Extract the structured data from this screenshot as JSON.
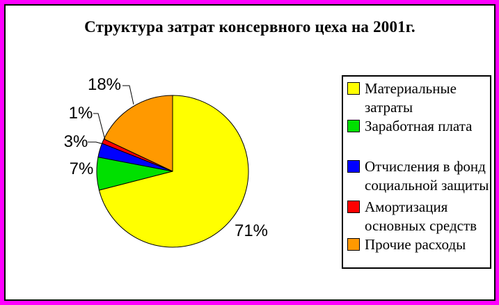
{
  "title": "Структура затрат консервного цеха на 2001г.",
  "colors": {
    "frame": "#FF00FF",
    "inner_border": "#000000",
    "background": "#FFFFFF",
    "text": "#000000"
  },
  "chart_data": {
    "type": "pie",
    "title": "Структура затрат консервного цеха на 2001г.",
    "direction": "clockwise",
    "start_angle_deg_from_top": 0,
    "legend_position": "right",
    "slices": [
      {
        "label": "Материальные затраты",
        "value": 71,
        "pct_label": "71%",
        "color": "#FFFF00"
      },
      {
        "label": "Заработная плата",
        "value": 7,
        "pct_label": "7%",
        "color": "#00E000"
      },
      {
        "label": "Отчисления в фонд социальной защиты",
        "value": 3,
        "pct_label": "3%",
        "color": "#0000FF"
      },
      {
        "label": "Амортизация основных средств",
        "value": 1,
        "pct_label": "1%",
        "color": "#FF0000"
      },
      {
        "label": "Прочие расходы",
        "value": 18,
        "pct_label": "18%",
        "color": "#FF9900"
      }
    ]
  }
}
